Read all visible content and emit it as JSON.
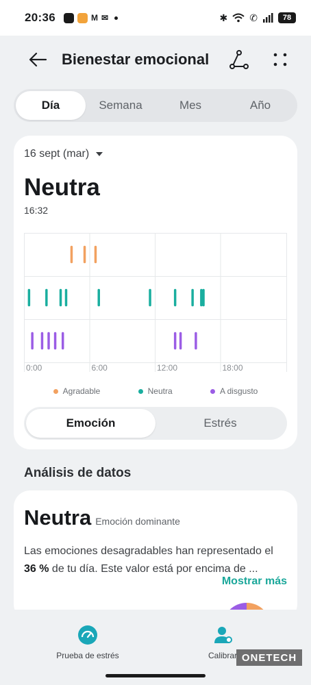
{
  "status": {
    "time": "20:36",
    "battery": "78"
  },
  "header": {
    "title": "Bienestar emocional",
    "back_icon": "arrow-left-icon",
    "share_icon": "share-icon",
    "more_icon": "grid-dots-icon"
  },
  "tabs": [
    {
      "label": "Día",
      "active": true
    },
    {
      "label": "Semana",
      "active": false
    },
    {
      "label": "Mes",
      "active": false
    },
    {
      "label": "Año",
      "active": false
    }
  ],
  "summary": {
    "date": "16 sept (mar)",
    "value": "Neutra",
    "time": "16:32"
  },
  "chart_data": {
    "type": "scatter",
    "x_ticks": [
      "0:00",
      "6:00",
      "12:00",
      "18:00"
    ],
    "xlim": [
      0,
      24
    ],
    "rows": [
      "Agradable",
      "Neutra",
      "A disgusto"
    ],
    "series": [
      {
        "name": "Agradable",
        "color": "#f2a160",
        "x": [
          4.3,
          5.5,
          6.5
        ]
      },
      {
        "name": "Neutra",
        "color": "#1aae9f",
        "x": [
          0.4,
          2.0,
          3.3,
          3.8,
          6.8,
          11.5,
          13.8,
          15.4,
          16.2,
          16.4
        ]
      },
      {
        "name": "A disgusto",
        "color": "#9b5de5",
        "x": [
          0.7,
          1.6,
          2.2,
          2.8,
          3.5,
          13.8,
          14.3,
          15.7
        ]
      }
    ],
    "legend": [
      "Agradable",
      "Neutra",
      "A disgusto"
    ],
    "legend_position": "bottom",
    "grid": true
  },
  "toggle": {
    "left": "Emoción",
    "right": "Estrés"
  },
  "analysis": {
    "section_title": "Análisis de datos",
    "value": "Neutra",
    "subtitle": "Emoción dominante",
    "text_before": "Las emociones desagradables han representado el ",
    "percent": "36 %",
    "text_after": " de tu día. Este valor está por encima de ...",
    "more": "Mostrar más"
  },
  "bottom_nav": {
    "left_label": "Prueba de estrés",
    "right_label": "Calibrar"
  },
  "watermark": "ONETECH",
  "colors": {
    "accent": "#1aa79a",
    "agradable": "#f2a160",
    "neutra": "#1aae9f",
    "disgusto": "#9b5de5"
  }
}
